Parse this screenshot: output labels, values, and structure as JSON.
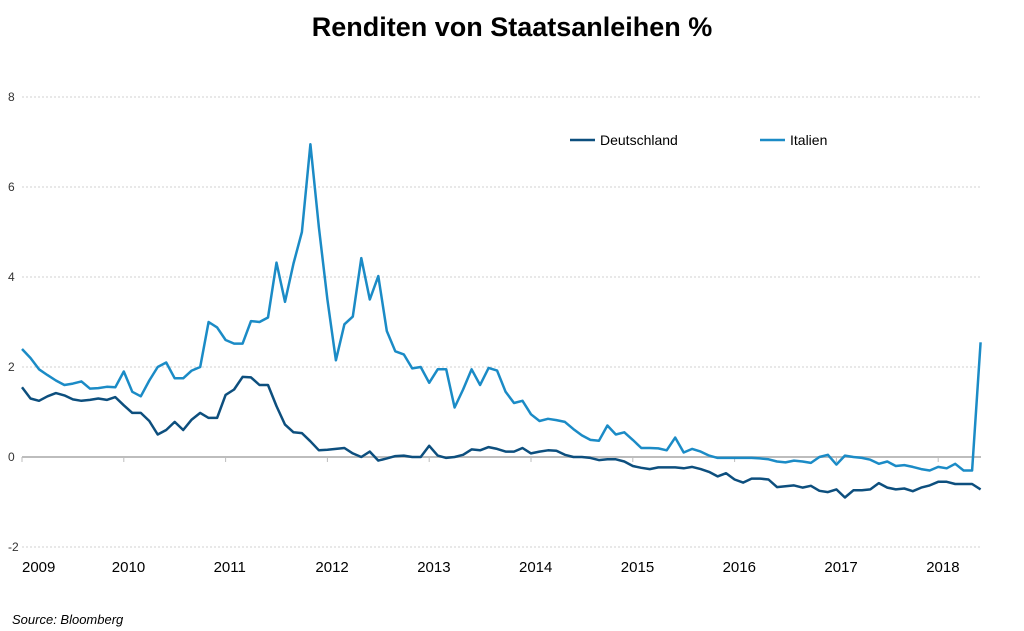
{
  "chart_data": {
    "type": "line",
    "title": "Renditen von Staatsanleihen  %",
    "source": "Source: Bloomberg",
    "xlabel": "",
    "ylabel": "",
    "x_start": 2009,
    "x_step_months": 1,
    "xlim": [
      2009,
      2018.42
    ],
    "ylim": [
      -2,
      8
    ],
    "yticks": [
      8,
      6,
      4,
      2,
      0,
      -2
    ],
    "xticks": [
      2009,
      2010,
      2011,
      2012,
      2013,
      2014,
      2015,
      2016,
      2017,
      2018
    ],
    "grid": true,
    "legend_position": "top-right",
    "series": [
      {
        "name": "Deutschland",
        "color": "#0d4f7e",
        "values": [
          1.55,
          1.3,
          1.25,
          1.35,
          1.42,
          1.37,
          1.28,
          1.25,
          1.27,
          1.3,
          1.27,
          1.33,
          1.15,
          0.98,
          0.98,
          0.8,
          0.5,
          0.6,
          0.78,
          0.6,
          0.83,
          0.98,
          0.87,
          0.87,
          1.38,
          1.5,
          1.78,
          1.77,
          1.6,
          1.6,
          1.13,
          0.72,
          0.55,
          0.53,
          0.35,
          0.15,
          0.16,
          0.18,
          0.2,
          0.08,
          0.0,
          0.12,
          -0.08,
          -0.03,
          0.02,
          0.03,
          0.0,
          0.0,
          0.25,
          0.03,
          -0.02,
          0.0,
          0.05,
          0.17,
          0.15,
          0.22,
          0.18,
          0.12,
          0.12,
          0.2,
          0.08,
          0.12,
          0.15,
          0.14,
          0.05,
          0.0,
          0.0,
          -0.02,
          -0.07,
          -0.05,
          -0.05,
          -0.1,
          -0.2,
          -0.24,
          -0.27,
          -0.23,
          -0.23,
          -0.23,
          -0.25,
          -0.22,
          -0.27,
          -0.33,
          -0.43,
          -0.36,
          -0.5,
          -0.57,
          -0.48,
          -0.48,
          -0.5,
          -0.67,
          -0.65,
          -0.63,
          -0.68,
          -0.64,
          -0.75,
          -0.78,
          -0.72,
          -0.9,
          -0.74,
          -0.74,
          -0.72,
          -0.58,
          -0.68,
          -0.72,
          -0.7,
          -0.76,
          -0.68,
          -0.63,
          -0.55,
          -0.55,
          -0.6,
          -0.6,
          -0.6,
          -0.72
        ]
      },
      {
        "name": "Italien",
        "color": "#1b8bc6",
        "values": [
          2.4,
          2.2,
          1.95,
          1.82,
          1.7,
          1.6,
          1.63,
          1.68,
          1.52,
          1.53,
          1.56,
          1.55,
          1.9,
          1.45,
          1.35,
          1.7,
          2.0,
          2.1,
          1.75,
          1.75,
          1.92,
          2.0,
          3.0,
          2.88,
          2.6,
          2.52,
          2.52,
          3.02,
          3.0,
          3.1,
          4.32,
          3.45,
          4.3,
          5.0,
          6.95,
          5.1,
          3.5,
          2.15,
          2.95,
          3.12,
          4.42,
          3.5,
          4.02,
          2.8,
          2.35,
          2.28,
          1.97,
          2.0,
          1.65,
          1.95,
          1.95,
          1.1,
          1.5,
          1.95,
          1.6,
          1.98,
          1.92,
          1.45,
          1.2,
          1.25,
          0.95,
          0.8,
          0.85,
          0.82,
          0.78,
          0.62,
          0.48,
          0.38,
          0.36,
          0.7,
          0.5,
          0.55,
          0.38,
          0.2,
          0.2,
          0.19,
          0.15,
          0.43,
          0.1,
          0.18,
          0.12,
          0.03,
          -0.02,
          -0.02,
          -0.02,
          -0.02,
          -0.02,
          -0.03,
          -0.05,
          -0.1,
          -0.12,
          -0.08,
          -0.1,
          -0.13,
          0.0,
          0.05,
          -0.17,
          0.03,
          0.0,
          -0.02,
          -0.06,
          -0.15,
          -0.1,
          -0.2,
          -0.18,
          -0.22,
          -0.27,
          -0.3,
          -0.22,
          -0.25,
          -0.15,
          -0.3,
          -0.3,
          2.55
        ]
      }
    ]
  }
}
